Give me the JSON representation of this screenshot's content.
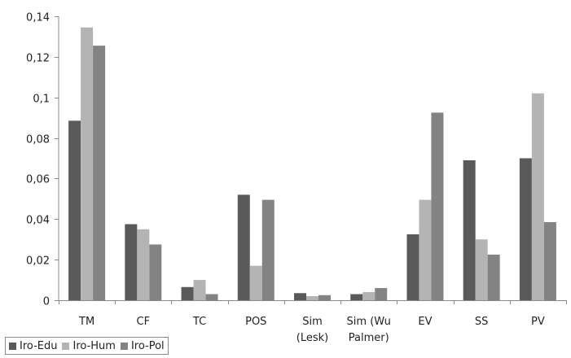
{
  "chart_data": {
    "type": "bar",
    "categories": [
      [
        "TM"
      ],
      [
        "CF"
      ],
      [
        "TC"
      ],
      [
        "POS"
      ],
      [
        "Sim",
        "(Lesk)"
      ],
      [
        "Sim (Wu",
        "Palmer)"
      ],
      [
        "EV"
      ],
      [
        "SS"
      ],
      [
        "PV"
      ]
    ],
    "series": [
      {
        "name": "Iro-Edu",
        "color": "#5a5a5a",
        "values": [
          0.0885,
          0.0375,
          0.0065,
          0.052,
          0.0035,
          0.003,
          0.0325,
          0.069,
          0.07
        ]
      },
      {
        "name": "Iro-Hum",
        "color": "#b4b4b4",
        "values": [
          0.1345,
          0.035,
          0.01,
          0.017,
          0.002,
          0.004,
          0.0495,
          0.03,
          0.102
        ]
      },
      {
        "name": "Iro-Pol",
        "color": "#838383",
        "values": [
          0.1255,
          0.0275,
          0.003,
          0.0495,
          0.0025,
          0.006,
          0.0925,
          0.0225,
          0.0385
        ]
      }
    ],
    "yticks": [
      "0",
      "0,02",
      "0,04",
      "0,06",
      "0,08",
      "0,1",
      "0,12",
      "0,14"
    ],
    "ylim": [
      0,
      0.14
    ],
    "title": "",
    "xlabel": "",
    "ylabel": "",
    "grid": false,
    "legend_position": "bottom-left"
  }
}
